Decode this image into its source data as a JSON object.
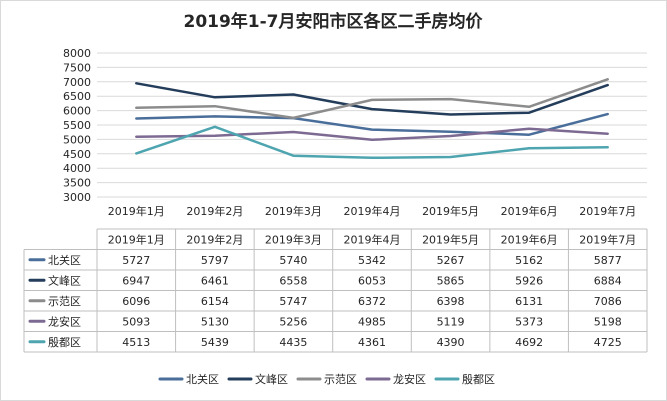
{
  "chart_data": {
    "type": "line",
    "title": "2019年1-7月安阳市区各区二手房均价",
    "categories": [
      "2019年1月",
      "2019年2月",
      "2019年3月",
      "2019年4月",
      "2019年5月",
      "2019年6月",
      "2019年7月"
    ],
    "ylim": [
      3000,
      8000
    ],
    "yticks": [
      3000,
      3500,
      4000,
      4500,
      5000,
      5500,
      6000,
      6500,
      7000,
      7500,
      8000
    ],
    "grid": true,
    "legend": "bottom",
    "series": [
      {
        "name": "北关区",
        "color": "#4a6e9a",
        "values": [
          5727,
          5797,
          5740,
          5342,
          5267,
          5162,
          5877
        ]
      },
      {
        "name": "文峰区",
        "color": "#233d5b",
        "values": [
          6947,
          6461,
          6558,
          6053,
          5865,
          5926,
          6884
        ]
      },
      {
        "name": "示范区",
        "color": "#8c8c8c",
        "values": [
          6096,
          6154,
          5747,
          6372,
          6398,
          6131,
          7086
        ]
      },
      {
        "name": "龙安区",
        "color": "#7d6a92",
        "values": [
          5093,
          5130,
          5256,
          4985,
          5119,
          5373,
          5198
        ]
      },
      {
        "name": "殷都区",
        "color": "#4ea5b0",
        "values": [
          4513,
          5439,
          4435,
          4361,
          4390,
          4692,
          4725
        ]
      }
    ]
  }
}
